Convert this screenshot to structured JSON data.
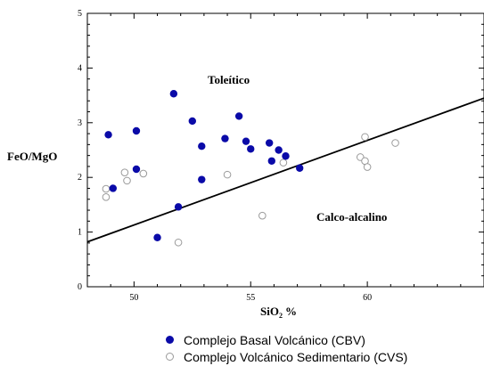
{
  "chart_data": {
    "type": "scatter",
    "xlabel": "SiO",
    "xlabel_sub": "2",
    "xlabel_unit": "%",
    "ylabel": "FeO/MgO",
    "xlim": [
      48,
      65
    ],
    "ylim": [
      0,
      5
    ],
    "xticks": [
      50,
      55,
      60
    ],
    "yticks": [
      0,
      1,
      2,
      3,
      4,
      5
    ],
    "annotations": [
      "Toleítico",
      "Calco-alcalino"
    ],
    "divider_line": {
      "x": [
        48,
        65
      ],
      "y": [
        0.82,
        3.45
      ]
    },
    "series": [
      {
        "name": "Complejo Basal Volcánico (CBV)",
        "marker": "filled-circle",
        "color": "#0a0aa8",
        "points": [
          [
            48.9,
            2.78
          ],
          [
            49.1,
            1.8
          ],
          [
            50.1,
            2.85
          ],
          [
            50.1,
            2.15
          ],
          [
            51.0,
            0.9
          ],
          [
            51.7,
            3.53
          ],
          [
            51.9,
            1.46
          ],
          [
            52.5,
            3.03
          ],
          [
            52.9,
            2.57
          ],
          [
            52.9,
            1.96
          ],
          [
            53.9,
            2.71
          ],
          [
            54.5,
            3.12
          ],
          [
            54.8,
            2.66
          ],
          [
            55.0,
            2.52
          ],
          [
            55.8,
            2.63
          ],
          [
            55.9,
            2.3
          ],
          [
            56.2,
            2.5
          ],
          [
            56.5,
            2.39
          ],
          [
            57.1,
            2.17
          ]
        ]
      },
      {
        "name": "Complejo Volcánico Sedimentario (CVS)",
        "marker": "open-circle",
        "color": "#9a9a9a",
        "points": [
          [
            48.8,
            1.79
          ],
          [
            48.8,
            1.64
          ],
          [
            49.6,
            2.09
          ],
          [
            49.7,
            1.94
          ],
          [
            50.4,
            2.07
          ],
          [
            51.9,
            0.81
          ],
          [
            54.0,
            2.05
          ],
          [
            55.5,
            1.3
          ],
          [
            56.4,
            2.27
          ],
          [
            59.7,
            2.37
          ],
          [
            59.9,
            2.74
          ],
          [
            59.9,
            2.3
          ],
          [
            60.0,
            2.19
          ],
          [
            61.2,
            2.63
          ]
        ]
      }
    ]
  }
}
